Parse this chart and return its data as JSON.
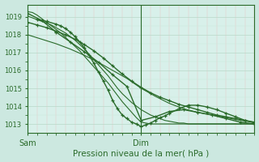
{
  "title": "Pression niveau de la mer( hPa )",
  "xlabel_sam": "Sam",
  "xlabel_dim": "Dim",
  "bg_color": "#cce8e0",
  "plot_bg": "#d8f0ea",
  "line_color": "#2a6b2a",
  "ylim": [
    1012.5,
    1019.7
  ],
  "yticks": [
    1013,
    1014,
    1015,
    1016,
    1017,
    1018,
    1019
  ],
  "xlim": [
    0,
    48
  ],
  "x_sam": 0,
  "x_dim": 24,
  "lines": [
    {
      "x": [
        0,
        1,
        2,
        3,
        4,
        5,
        6,
        7,
        8,
        9,
        10,
        11,
        12,
        13,
        14,
        15,
        16,
        17,
        18,
        19,
        20,
        21,
        22,
        23,
        24,
        25,
        26,
        27,
        28,
        29,
        30,
        31,
        32,
        33,
        34,
        35,
        36,
        37,
        38,
        39,
        40,
        41,
        42,
        43,
        44,
        45,
        46,
        47,
        48
      ],
      "y": [
        1019.3,
        1019.25,
        1019.1,
        1018.9,
        1018.7,
        1018.5,
        1018.3,
        1018.1,
        1017.85,
        1017.6,
        1017.35,
        1017.1,
        1016.8,
        1016.5,
        1016.2,
        1015.9,
        1015.6,
        1015.3,
        1014.95,
        1014.6,
        1014.25,
        1013.95,
        1013.65,
        1013.35,
        1013.1,
        1013.05,
        1013.0,
        1013.0,
        1013.0,
        1013.0,
        1013.0,
        1013.0,
        1013.0,
        1013.0,
        1013.0,
        1013.0,
        1013.0,
        1013.0,
        1013.0,
        1013.0,
        1013.0,
        1013.0,
        1013.0,
        1013.0,
        1013.0,
        1013.0,
        1013.0,
        1013.0,
        1013.0
      ],
      "marker": false,
      "lw": 0.8
    },
    {
      "x": [
        0,
        3,
        6,
        9,
        12,
        15,
        18,
        21,
        24,
        27,
        30,
        33,
        36,
        39,
        42,
        45,
        48
      ],
      "y": [
        1019.2,
        1018.8,
        1018.15,
        1017.6,
        1017.05,
        1016.45,
        1015.75,
        1015.1,
        1013.2,
        1013.4,
        1013.7,
        1013.8,
        1013.65,
        1013.5,
        1013.3,
        1013.1,
        1013.0
      ],
      "marker": true,
      "lw": 1.0
    },
    {
      "x": [
        0,
        2,
        4,
        5,
        6,
        7,
        8,
        9,
        10,
        11,
        12,
        13,
        14,
        15,
        16,
        17,
        18,
        19,
        20,
        21,
        22,
        23,
        24,
        25,
        26,
        27,
        28,
        29,
        30,
        31,
        32,
        33,
        34,
        35,
        36,
        37,
        38,
        39,
        40,
        41,
        42,
        43,
        44,
        45,
        46,
        47,
        48
      ],
      "y": [
        1019.05,
        1018.85,
        1018.65,
        1018.55,
        1018.4,
        1018.25,
        1018.1,
        1017.9,
        1017.7,
        1017.45,
        1017.2,
        1016.9,
        1016.6,
        1016.3,
        1016.0,
        1015.7,
        1015.35,
        1015.0,
        1014.7,
        1014.45,
        1014.2,
        1014.0,
        1013.8,
        1013.65,
        1013.5,
        1013.4,
        1013.3,
        1013.2,
        1013.15,
        1013.1,
        1013.05,
        1013.05,
        1013.0,
        1013.0,
        1013.0,
        1013.0,
        1013.0,
        1013.0,
        1013.0,
        1013.0,
        1013.0,
        1013.0,
        1013.0,
        1013.0,
        1013.0,
        1013.0,
        1013.0
      ],
      "marker": false,
      "lw": 0.8
    },
    {
      "x": [
        0,
        2,
        4,
        6,
        8,
        10,
        12,
        14,
        16,
        18,
        20,
        22,
        24,
        26,
        28,
        30,
        32,
        34,
        36,
        38,
        40,
        42,
        44,
        46,
        48
      ],
      "y": [
        1018.7,
        1018.55,
        1018.4,
        1018.2,
        1018.0,
        1017.75,
        1017.45,
        1017.1,
        1016.7,
        1016.25,
        1015.8,
        1015.4,
        1015.05,
        1014.75,
        1014.5,
        1014.3,
        1014.1,
        1013.95,
        1013.8,
        1013.65,
        1013.5,
        1013.4,
        1013.3,
        1013.2,
        1013.1
      ],
      "marker": true,
      "lw": 1.0
    },
    {
      "x": [
        0,
        3,
        6,
        9,
        12,
        15,
        18,
        21,
        24,
        27,
        30,
        33,
        36,
        39,
        42,
        45,
        48
      ],
      "y": [
        1018.0,
        1017.75,
        1017.5,
        1017.2,
        1016.85,
        1016.45,
        1016.0,
        1015.55,
        1015.0,
        1014.55,
        1014.15,
        1013.85,
        1013.65,
        1013.5,
        1013.35,
        1013.2,
        1013.1
      ],
      "marker": false,
      "lw": 0.8
    },
    {
      "x": [
        2,
        4,
        6,
        7,
        8,
        9,
        10,
        11,
        12,
        13,
        14,
        15,
        16,
        17,
        18,
        19,
        20,
        21,
        22,
        23,
        24,
        25,
        26,
        27,
        28,
        29,
        30,
        32,
        34,
        36,
        38,
        40,
        42,
        44,
        46,
        48
      ],
      "y": [
        1018.85,
        1018.75,
        1018.6,
        1018.5,
        1018.35,
        1018.15,
        1017.9,
        1017.6,
        1017.25,
        1016.85,
        1016.4,
        1015.9,
        1015.4,
        1014.9,
        1014.3,
        1013.85,
        1013.5,
        1013.3,
        1013.1,
        1013.0,
        1012.85,
        1012.95,
        1013.05,
        1013.2,
        1013.35,
        1013.45,
        1013.6,
        1013.85,
        1014.05,
        1014.05,
        1013.95,
        1013.8,
        1013.6,
        1013.4,
        1013.2,
        1013.05
      ],
      "marker": true,
      "lw": 1.0
    }
  ]
}
